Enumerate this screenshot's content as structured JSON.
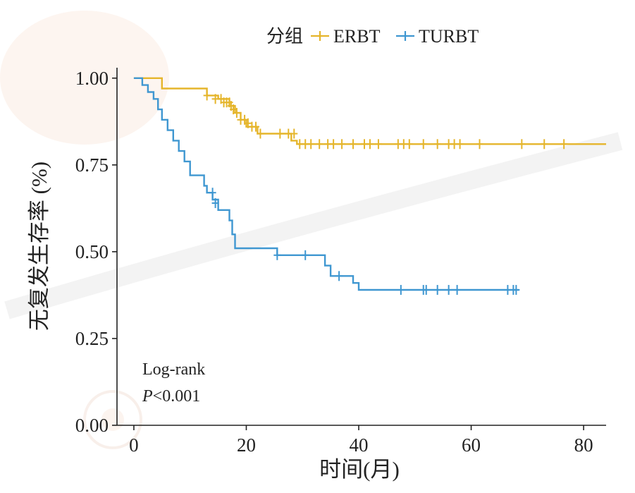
{
  "chart_data": {
    "type": "line",
    "subtype": "kaplan-meier",
    "title": "",
    "xlabel": "时间(月)",
    "ylabel": "无复发生存率 (%)",
    "xlim": [
      -3,
      84
    ],
    "ylim": [
      0,
      1.03
    ],
    "xticks": [
      0,
      20,
      40,
      60,
      80
    ],
    "xtick_labels": [
      "0",
      "20",
      "40",
      "60",
      "80"
    ],
    "yticks": [
      0,
      0.25,
      0.5,
      0.75,
      1.0
    ],
    "ytick_labels": [
      "0.00",
      "0.25",
      "0.50",
      "0.75",
      "1.00"
    ],
    "grid": false,
    "legend": {
      "title": "分组",
      "position": "top-right",
      "entries": [
        "ERBT",
        "TURBT"
      ]
    },
    "annotation": {
      "line1": "Log-rank",
      "p_label": "P",
      "p_value": "<0.001"
    },
    "series": [
      {
        "name": "ERBT",
        "color": "#E5B52B",
        "steps": [
          [
            0,
            1.0
          ],
          [
            5,
            0.97
          ],
          [
            13,
            0.95
          ],
          [
            15,
            0.94
          ],
          [
            17,
            0.92
          ],
          [
            18,
            0.9
          ],
          [
            19,
            0.88
          ],
          [
            20,
            0.86
          ],
          [
            22,
            0.84
          ],
          [
            28,
            0.82
          ],
          [
            29,
            0.81
          ],
          [
            84,
            0.81
          ]
        ],
        "censored": [
          [
            13,
            0.95
          ],
          [
            14.5,
            0.94
          ],
          [
            15.5,
            0.94
          ],
          [
            16,
            0.93
          ],
          [
            16.5,
            0.93
          ],
          [
            17,
            0.93
          ],
          [
            17.3,
            0.92
          ],
          [
            17.7,
            0.91
          ],
          [
            18.3,
            0.9
          ],
          [
            19,
            0.88
          ],
          [
            19.7,
            0.88
          ],
          [
            20.3,
            0.87
          ],
          [
            21,
            0.86
          ],
          [
            21.7,
            0.86
          ],
          [
            22.5,
            0.84
          ],
          [
            26,
            0.84
          ],
          [
            27.5,
            0.84
          ],
          [
            28.5,
            0.84
          ],
          [
            29.5,
            0.81
          ],
          [
            30.5,
            0.81
          ],
          [
            31.5,
            0.81
          ],
          [
            33,
            0.81
          ],
          [
            34.5,
            0.81
          ],
          [
            35.5,
            0.81
          ],
          [
            37,
            0.81
          ],
          [
            39,
            0.81
          ],
          [
            41,
            0.81
          ],
          [
            42,
            0.81
          ],
          [
            43.5,
            0.81
          ],
          [
            47,
            0.81
          ],
          [
            48,
            0.81
          ],
          [
            49,
            0.81
          ],
          [
            51.5,
            0.81
          ],
          [
            54,
            0.81
          ],
          [
            56,
            0.81
          ],
          [
            57,
            0.81
          ],
          [
            58,
            0.81
          ],
          [
            61.5,
            0.81
          ],
          [
            69,
            0.81
          ],
          [
            73,
            0.81
          ],
          [
            76.5,
            0.81
          ]
        ]
      },
      {
        "name": "TURBT",
        "color": "#3F97D1",
        "steps": [
          [
            0,
            1.0
          ],
          [
            1.5,
            0.98
          ],
          [
            2.5,
            0.96
          ],
          [
            3.5,
            0.94
          ],
          [
            4.3,
            0.91
          ],
          [
            5,
            0.88
          ],
          [
            6,
            0.85
          ],
          [
            7,
            0.82
          ],
          [
            8,
            0.79
          ],
          [
            9,
            0.76
          ],
          [
            10,
            0.72
          ],
          [
            12.5,
            0.69
          ],
          [
            13,
            0.67
          ],
          [
            14,
            0.65
          ],
          [
            15,
            0.62
          ],
          [
            17,
            0.59
          ],
          [
            17.5,
            0.55
          ],
          [
            18,
            0.51
          ],
          [
            25.5,
            0.49
          ],
          [
            34,
            0.46
          ],
          [
            35,
            0.43
          ],
          [
            39,
            0.41
          ],
          [
            40,
            0.39
          ],
          [
            68.5,
            0.39
          ]
        ],
        "censored": [
          [
            14,
            0.67
          ],
          [
            14.5,
            0.64
          ],
          [
            25.5,
            0.49
          ],
          [
            30.5,
            0.49
          ],
          [
            36.5,
            0.43
          ],
          [
            47.5,
            0.39
          ],
          [
            51.5,
            0.39
          ],
          [
            52,
            0.39
          ],
          [
            54,
            0.39
          ],
          [
            56,
            0.39
          ],
          [
            57.5,
            0.39
          ],
          [
            66.5,
            0.39
          ],
          [
            67.5,
            0.39
          ],
          [
            68,
            0.39
          ]
        ]
      }
    ]
  }
}
